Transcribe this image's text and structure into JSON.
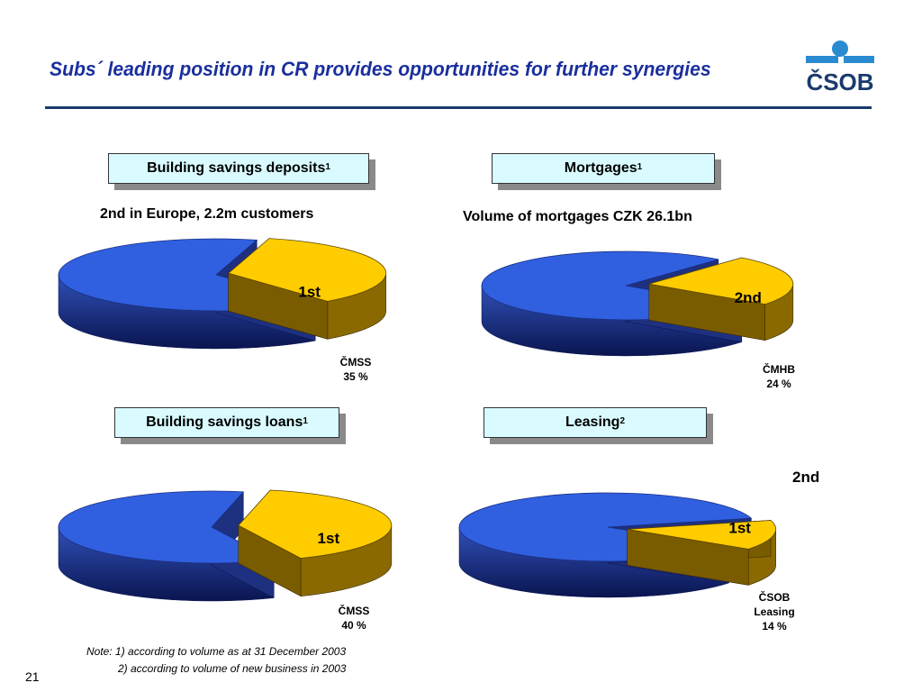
{
  "slide": {
    "title": "Subs´ leading position in CR provides opportunities for further synergies",
    "page_number": "21",
    "logo_text": "ČSOB",
    "notes": [
      "Note: 1) according to volume as at 31 December 2003",
      "2) according to volume of new business in 2003"
    ]
  },
  "colors": {
    "title": "#1a2f9c",
    "blue": "#3060e0",
    "gold": "#ffcc00",
    "box": "#d9fbff",
    "logo": "#2a8bd0"
  },
  "panels": [
    {
      "box_label": "Building savings deposits",
      "box_sup": "1",
      "subtitle": "2nd in Europe, 2.2m customers",
      "rank": "1st",
      "company": "ČMSS",
      "share_label": "35 %"
    },
    {
      "box_label": "Mortgages",
      "box_sup": "1",
      "subtitle": "Volume of mortgages CZK 26.1bn",
      "rank": "2nd",
      "company": "ČMHB",
      "share_label": "24 %"
    },
    {
      "box_label": "Building savings loans",
      "box_sup": "1",
      "subtitle": "",
      "rank": "1st",
      "company": "ČMSS",
      "share_label": "40 %"
    },
    {
      "box_label": "Leasing",
      "box_sup": "2",
      "subtitle": "2nd",
      "rank": "1st",
      "company": "ČSOB",
      "company2": "Leasing",
      "share_label": "14 %"
    }
  ],
  "chart_data": [
    {
      "type": "pie",
      "title": "Building savings deposits",
      "slices": [
        {
          "name": "ČMSS",
          "value": 35
        },
        {
          "name": "",
          "value": 65
        }
      ]
    },
    {
      "type": "pie",
      "title": "Mortgages",
      "slices": [
        {
          "name": "ČMHB",
          "value": 24
        },
        {
          "name": "",
          "value": 76
        }
      ]
    },
    {
      "type": "pie",
      "title": "Building savings loans",
      "slices": [
        {
          "name": "ČMSS",
          "value": 40
        },
        {
          "name": "",
          "value": 60
        }
      ]
    },
    {
      "type": "pie",
      "title": "Leasing",
      "slices": [
        {
          "name": "ČSOB Leasing",
          "value": 14
        },
        {
          "name": "",
          "value": 86
        }
      ]
    }
  ]
}
